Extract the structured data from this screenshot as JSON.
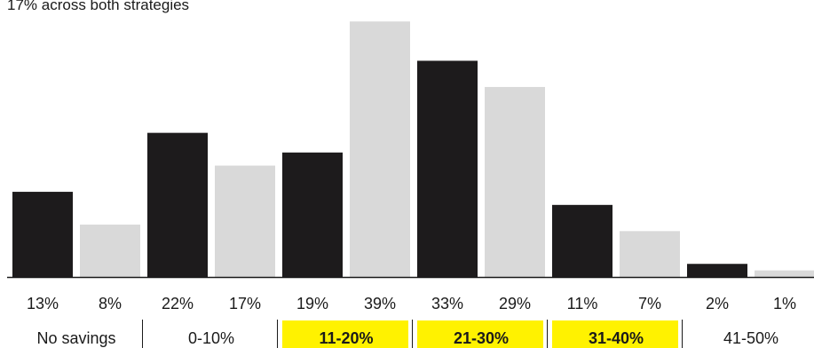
{
  "subtitle": "17% across both strategies",
  "colors": {
    "dark": "#1d1b1c",
    "light": "#d9d9d9",
    "highlight": "#fff200",
    "axis": "#1a1a1a"
  },
  "chart_data": {
    "type": "bar",
    "categories": [
      "No savings",
      "0-10%",
      "11-20%",
      "21-30%",
      "31-40%",
      "41-50%"
    ],
    "highlighted_categories": [
      "11-20%",
      "21-30%",
      "31-40%"
    ],
    "series": [
      {
        "values": [
          13,
          22,
          19,
          33,
          11,
          2
        ],
        "color": "#1d1b1c"
      },
      {
        "values": [
          8,
          17,
          39,
          29,
          7,
          1
        ],
        "color": "#d9d9d9"
      }
    ],
    "value_labels": [
      "13%",
      "8%",
      "22%",
      "17%",
      "19%",
      "39%",
      "33%",
      "29%",
      "11%",
      "7%",
      "2%",
      "1%"
    ],
    "ylim": [
      0,
      40
    ],
    "grid": false
  }
}
